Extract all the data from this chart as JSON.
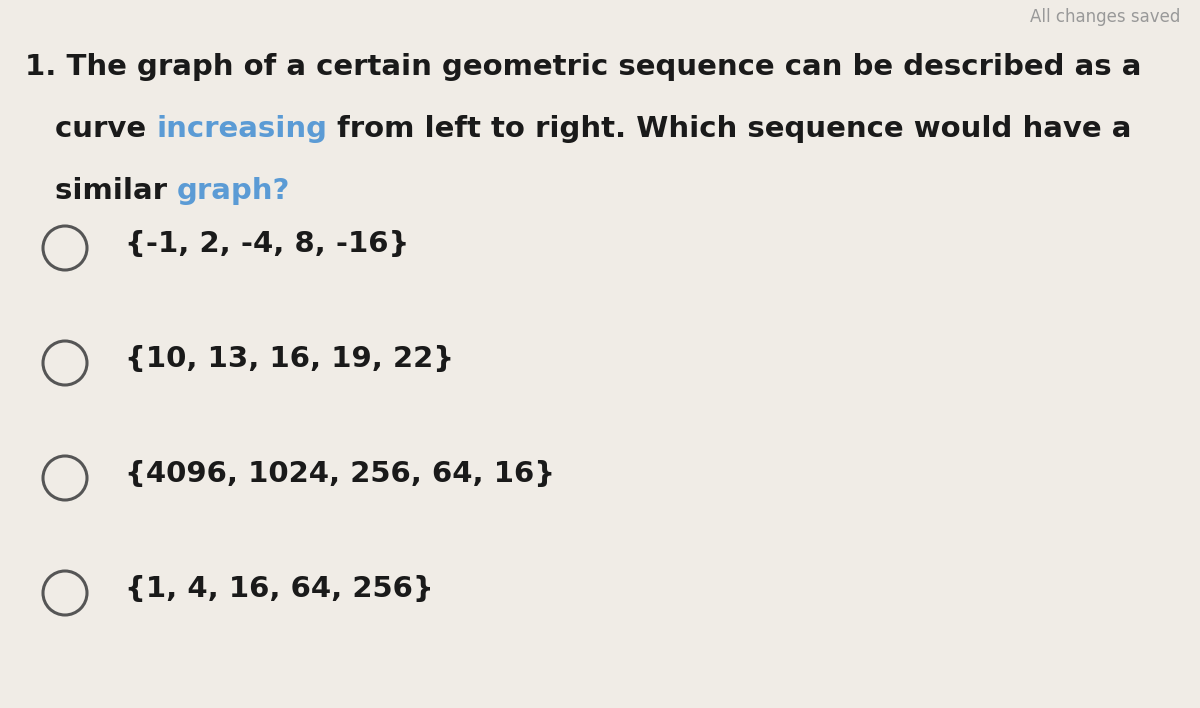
{
  "background_color": "#f0ece6",
  "header_text": "All changes saved",
  "options": [
    "{-1, 2, -4, 8, -16}",
    "{10, 13, 16, 19, 22}",
    "{4096, 1024, 256, 64, 16}",
    "{1, 4, 16, 64, 256}"
  ],
  "circle_color": "#555555",
  "text_color": "#1a1a1a",
  "highlight_color": "#5b9bd5",
  "header_color": "#999999",
  "font_size_question": 21,
  "font_size_option": 21,
  "font_size_header": 12,
  "q_line1_normal": "1. The graph of a certain geometric sequence can be described as a",
  "q_line2_before": "curve ",
  "q_line2_highlight": "increasing",
  "q_line2_after": " from left to right. Which sequence would have a",
  "q_line3_before": "similar ",
  "q_line3_highlight": "graph?"
}
